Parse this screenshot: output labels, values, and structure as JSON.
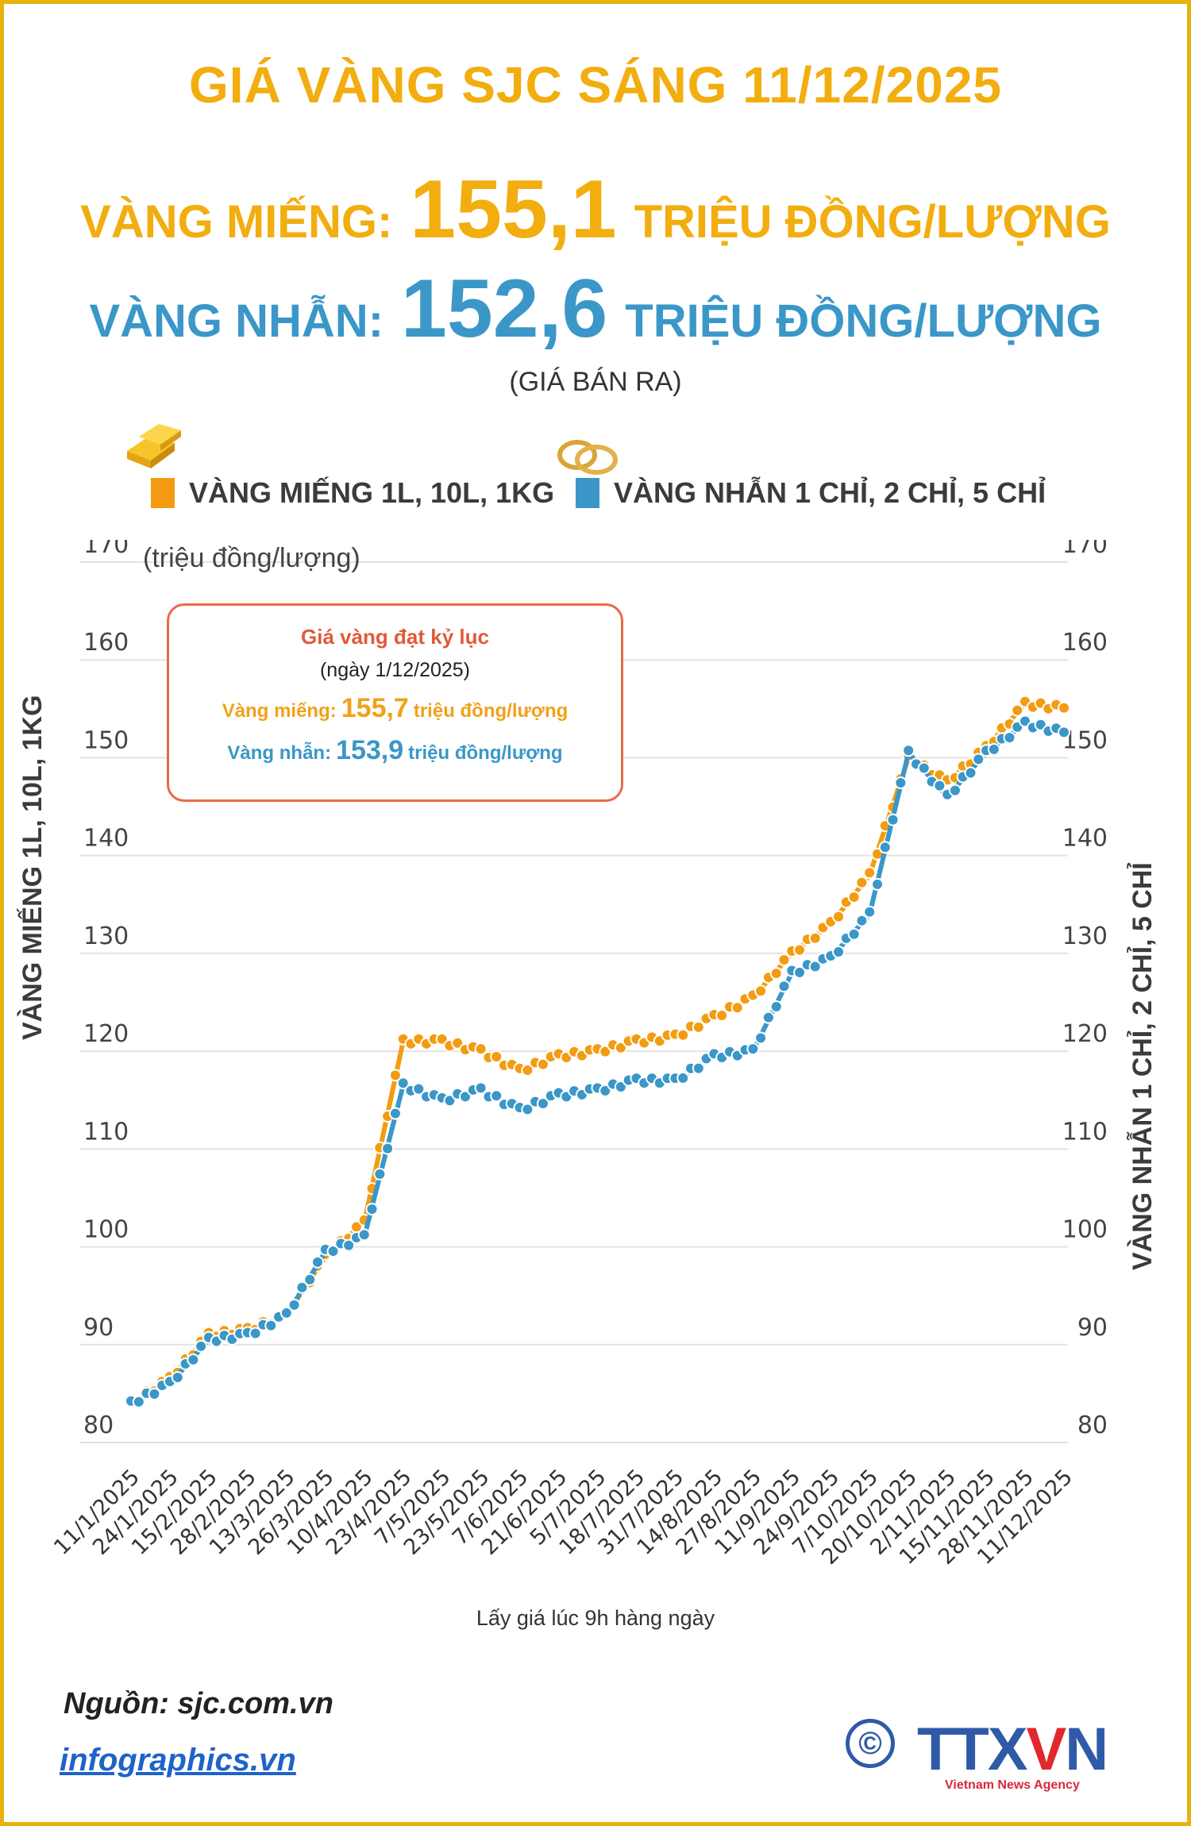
{
  "header": {
    "title": "GIÁ VÀNG SJC SÁNG 11/12/2025",
    "gold_bar": {
      "label": "VÀNG MIẾNG:",
      "value": "155,1",
      "unit": "TRIỆU ĐỒNG/LƯỢNG"
    },
    "gold_ring": {
      "label": "VÀNG NHẪN:",
      "value": "152,6",
      "unit": "TRIỆU ĐỒNG/LƯỢNG"
    },
    "note": "(GIÁ BÁN RA)"
  },
  "legend": {
    "gold_bar": {
      "label": "VÀNG MIẾNG 1L, 10L, 1KG",
      "color": "#f39c12",
      "icon": "gold-bars-icon"
    },
    "gold_ring": {
      "label": "VÀNG NHẪN 1 CHỈ, 2 CHỈ, 5 CHỈ",
      "color": "#3a97c8",
      "icon": "gold-rings-icon"
    }
  },
  "record_box": {
    "title": "Giá vàng đạt kỷ lục",
    "date": "(ngày 1/12/2025)",
    "gold_bar_label": "Vàng miếng:",
    "gold_bar_value": "155,7",
    "gold_ring_label": "Vàng nhẫn:",
    "gold_ring_value": "153,9",
    "unit": "triệu đồng/lượng"
  },
  "caption": "Lấy giá lúc 9h hàng ngày",
  "footer": {
    "source": "Nguồn: sjc.com.vn",
    "site": "infographics.vn",
    "logo": "TTXVN",
    "logo_tagline": "Vietnam News Agency",
    "copyright": "©"
  },
  "colors": {
    "frame": "#e8b20e",
    "title": "#f2ad0f",
    "gold_series": "#f39c12",
    "ring_series": "#3a97c8",
    "record_border": "#e86a4a"
  },
  "chart_data": {
    "type": "line",
    "title": "GIÁ VÀNG SJC SÁNG 11/12/2025",
    "xlabel": "Lấy giá lúc 9h hàng ngày",
    "ylabel": "VÀNG MIẾNG 1L, 10L, 1KG",
    "ylabel_right": "VÀNG NHẪN 1 CHỈ, 2 CHỈ, 5 CHỈ",
    "unit": "(triệu đồng/lượng)",
    "ylim": [
      80,
      170
    ],
    "yticks": [
      80,
      90,
      100,
      110,
      120,
      130,
      140,
      150,
      160,
      170
    ],
    "grid": true,
    "legend_position": "top",
    "x_tick_labels": [
      "11/1/2025",
      "24/1/2025",
      "15/2/2025",
      "28/2/2025",
      "13/3/2025",
      "26/3/2025",
      "10/4/2025",
      "23/4/2025",
      "7/5/2025",
      "23/5/2025",
      "7/6/2025",
      "21/6/2025",
      "5/7/2025",
      "18/7/2025",
      "31/7/2025",
      "14/8/2025",
      "27/8/2025",
      "11/9/2025",
      "24/9/2025",
      "7/10/2025",
      "20/10/2025",
      "2/11/2025",
      "15/11/2025",
      "28/11/2025",
      "11/12/2025"
    ],
    "categories": [
      "11/1/2025",
      "24/1/2025",
      "15/2/2025",
      "28/2/2025",
      "13/3/2025",
      "26/3/2025",
      "10/4/2025",
      "23/4/2025",
      "7/5/2025",
      "23/5/2025",
      "7/6/2025",
      "21/6/2025",
      "5/7/2025",
      "18/7/2025",
      "31/7/2025",
      "14/8/2025",
      "27/8/2025",
      "11/9/2025",
      "24/9/2025",
      "7/10/2025",
      "20/10/2025",
      "2/11/2025",
      "15/11/2025",
      "28/11/2025",
      "11/12/2025"
    ],
    "series": [
      {
        "name": "VÀNG MIẾNG 1L, 10L, 1KG",
        "color": "#f39c12",
        "values": [
          84.0,
          86.5,
          91.0,
          91.5,
          93.0,
          99.0,
          102.5,
          121.0,
          121.0,
          120.0,
          118.0,
          119.5,
          120.0,
          121.0,
          121.5,
          123.5,
          125.5,
          130.0,
          133.0,
          138.0,
          150.0,
          147.5,
          151.0,
          155.5,
          155.1
        ]
      },
      {
        "name": "VÀNG NHẪN 1 CHỈ, 2 CHỈ, 5 CHỈ",
        "color": "#3a97c8",
        "values": [
          84.0,
          86.0,
          90.5,
          91.0,
          93.0,
          99.5,
          101.0,
          116.5,
          115.0,
          116.0,
          114.0,
          115.5,
          116.0,
          117.0,
          117.0,
          119.5,
          120.0,
          128.0,
          129.5,
          134.0,
          150.5,
          146.0,
          150.5,
          153.5,
          152.6
        ]
      }
    ],
    "annotations": [
      "Giá vàng đạt kỷ lục (ngày 1/12/2025)",
      "Vàng miếng: 155,7 triệu đồng/lượng",
      "Vàng nhẫn: 153,9 triệu đồng/lượng"
    ]
  }
}
